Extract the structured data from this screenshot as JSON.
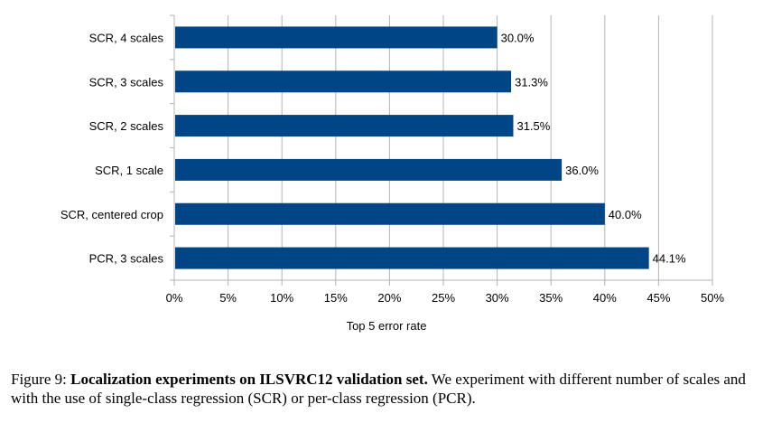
{
  "chart_data": {
    "type": "bar",
    "orientation": "horizontal",
    "categories": [
      "SCR, 4 scales",
      "SCR, 3 scales",
      "SCR, 2 scales",
      "SCR, 1 scale",
      "SCR, centered crop",
      "PCR, 3 scales"
    ],
    "values": [
      30.0,
      31.3,
      31.5,
      36.0,
      40.0,
      44.1
    ],
    "data_labels": [
      "30.0%",
      "31.3%",
      "31.5%",
      "36.0%",
      "40.0%",
      "44.1%"
    ],
    "xlabel": "Top 5 error rate",
    "ylabel": "",
    "xlim": [
      0,
      50
    ],
    "xticks": [
      "0%",
      "5%",
      "10%",
      "15%",
      "20%",
      "25%",
      "30%",
      "35%",
      "40%",
      "45%",
      "50%"
    ],
    "grid": true,
    "bar_color": "#004586",
    "grid_color": "#b3b3b3"
  },
  "caption": {
    "label": "Figure 9:",
    "bold": "Localization experiments on ILSVRC12 validation set.",
    "text": "We experiment with different number of scales and with the use of single-class regression (SCR) or per-class regression (PCR)."
  }
}
